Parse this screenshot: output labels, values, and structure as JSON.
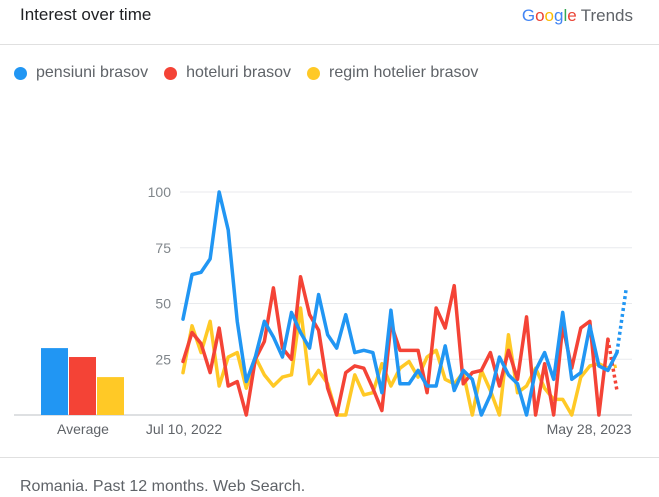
{
  "header": {
    "title": "Interest over time",
    "brand_letters": [
      {
        "ch": "G",
        "color": "#4285F4"
      },
      {
        "ch": "o",
        "color": "#EA4335"
      },
      {
        "ch": "o",
        "color": "#FBBC05"
      },
      {
        "ch": "g",
        "color": "#4285F4"
      },
      {
        "ch": "l",
        "color": "#34A853"
      },
      {
        "ch": "e",
        "color": "#EA4335"
      }
    ],
    "brand_suffix": "Trends"
  },
  "legend": [
    {
      "label": "pensiuni brasov",
      "color": "#2196F3"
    },
    {
      "label": "hoteluri brasov",
      "color": "#F44336"
    },
    {
      "label": "regim hotelier brasov",
      "color": "#FFC926"
    }
  ],
  "footer": "Romania. Past 12 months. Web Search.",
  "chart_data": {
    "type": "line",
    "ylim": [
      0,
      100
    ],
    "yticks": [
      "25",
      "50",
      "75",
      "100"
    ],
    "x_tick_labels": [
      "Jul 10, 2022",
      "May 28, 2023"
    ],
    "grid": true,
    "legend_position": "top-left",
    "average": {
      "label": "Average",
      "values": [
        30,
        26,
        17
      ]
    },
    "series": [
      {
        "name": "pensiuni brasov",
        "color": "#2196F3",
        "values": [
          43,
          63,
          64,
          70,
          100,
          83,
          42,
          15,
          26,
          42,
          35,
          26,
          46,
          37,
          30,
          54,
          36,
          30,
          45,
          28,
          29,
          28,
          10,
          47,
          14,
          14,
          20,
          13,
          13,
          31,
          11,
          20,
          16,
          0,
          9,
          26,
          18,
          14,
          0,
          20,
          28,
          16,
          46,
          16,
          19,
          40,
          22,
          20,
          28,
          56
        ],
        "partial_from_index": 48
      },
      {
        "name": "hoteluri brasov",
        "color": "#F44336",
        "values": [
          24,
          37,
          32,
          19,
          39,
          13,
          15,
          0,
          25,
          33,
          57,
          30,
          25,
          62,
          45,
          38,
          12,
          0,
          19,
          22,
          21,
          12,
          2,
          41,
          29,
          29,
          29,
          10,
          48,
          39,
          58,
          14,
          19,
          20,
          28,
          13,
          29,
          16,
          44,
          0,
          23,
          0,
          40,
          21,
          39,
          42,
          0,
          34,
          11
        ],
        "partial_from_index": 47
      },
      {
        "name": "regim hotelier brasov",
        "color": "#FFC926",
        "values": [
          19,
          40,
          28,
          42,
          13,
          26,
          28,
          12,
          26,
          18,
          13,
          17,
          18,
          48,
          14,
          20,
          14,
          0,
          0,
          18,
          9,
          10,
          23,
          13,
          21,
          24,
          17,
          26,
          29,
          16,
          14,
          19,
          0,
          20,
          11,
          0,
          36,
          10,
          13,
          21,
          12,
          7,
          7,
          0,
          17,
          22,
          23,
          21,
          22
        ],
        "partial_from_index": 47
      }
    ]
  }
}
